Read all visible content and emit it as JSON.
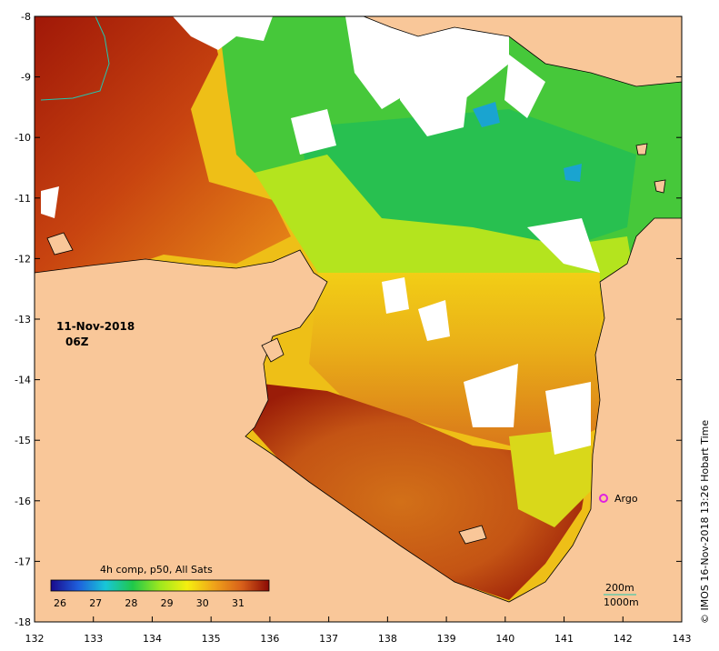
{
  "map": {
    "date": "11-Nov-2018",
    "time": "06Z",
    "credit": "© IMOS 16-Nov-2018 13:26 Hobart Time",
    "argo_label": "Argo",
    "scale_depth_1": "200m",
    "scale_depth_2": "1000m",
    "x_ticks": [
      "132",
      "133",
      "134",
      "135",
      "136",
      "137",
      "138",
      "139",
      "140",
      "141",
      "142",
      "143"
    ],
    "y_ticks": [
      "-8",
      "-9",
      "-10",
      "-11",
      "-12",
      "-13",
      "-14",
      "-15",
      "-16",
      "-17",
      "-18"
    ],
    "colors": {
      "land": "#f9c799",
      "cloud": "#ffffff",
      "argo": "#e020e0"
    }
  },
  "colorbar": {
    "title": "4h comp, p50, All Sats",
    "ticks": [
      "26",
      "27",
      "28",
      "29",
      "30",
      "31"
    ],
    "stops": [
      "#1a0a8c",
      "#1e5fdc",
      "#18c6d8",
      "#20c84a",
      "#9ee81e",
      "#f5ef10",
      "#f0a21a",
      "#d8601a",
      "#8b0a05"
    ]
  }
}
